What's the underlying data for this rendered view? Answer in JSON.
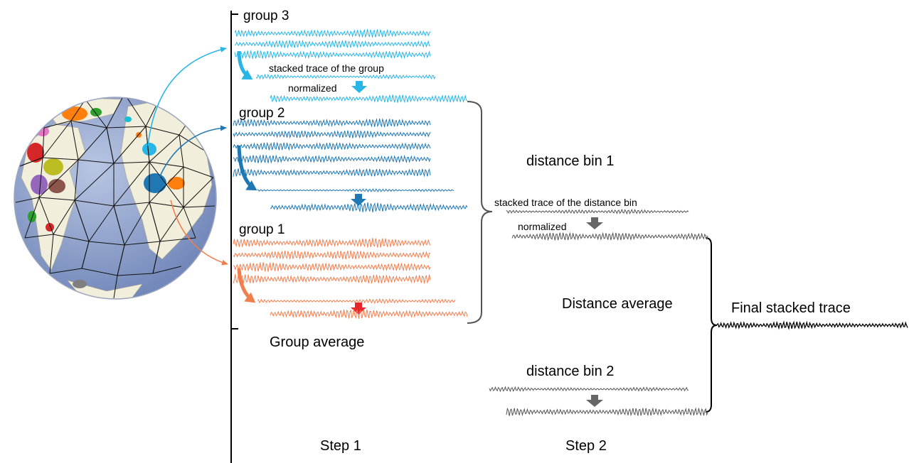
{
  "labels": {
    "group3": "group 3",
    "group2": "group 2",
    "group1": "group 1",
    "stacked_group": "stacked trace of the group",
    "normalized_group": "normalized",
    "distance_bin_1": "distance bin 1",
    "stacked_distance_bin": "stacked trace of the distance bin",
    "normalized_bin": "normalized",
    "group_average": "Group average",
    "distance_average": "Distance average",
    "final_stacked_trace": "Final stacked trace",
    "distance_bin_2": "distance bin 2",
    "step1": "Step 1",
    "step2": "Step 2"
  },
  "colors": {
    "group3": "#29b6e6",
    "group2": "#1f77b4",
    "group1": "#f07f4f",
    "gray": "#555555",
    "final": "#000000",
    "red_arrow": "#e8262a",
    "ocean": "#8fa2cc",
    "land": "#f2eedc"
  },
  "icons": {
    "globe": "globe-icosahedral-grid-icon",
    "down_arrow": "down-arrow-icon",
    "curved_arrow": "curved-arrow-icon",
    "brace": "curly-brace-icon"
  }
}
